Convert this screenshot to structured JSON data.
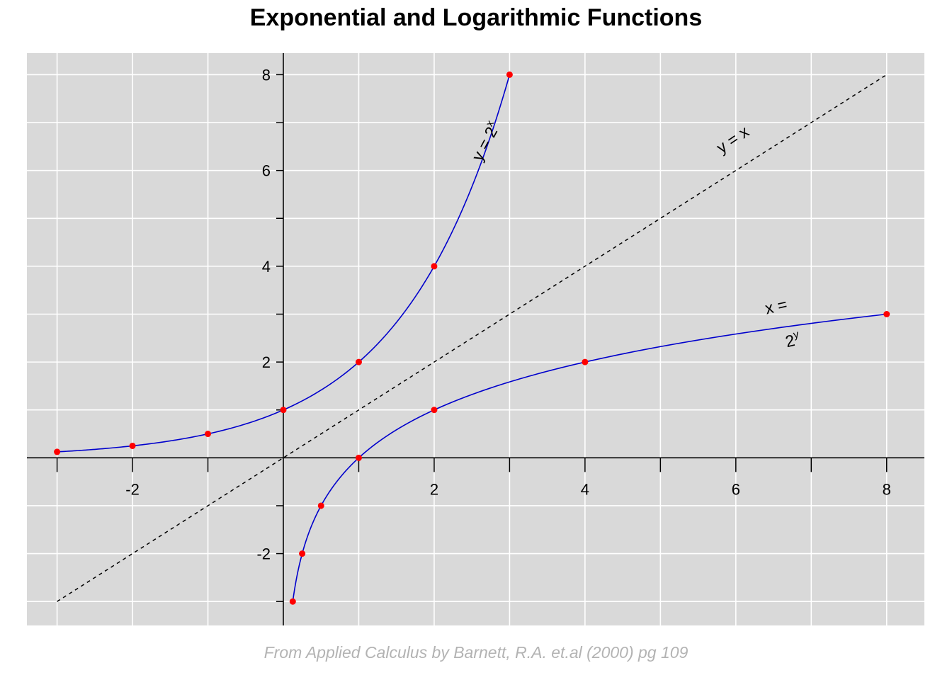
{
  "chart_data": {
    "type": "line",
    "title": "Exponential and Logarithmic Functions",
    "caption": "From Applied Calculus by Barnett, R.A. et.al (2000) pg 109",
    "xlabel": "",
    "ylabel": "",
    "xlim": [
      -3.4,
      8.5
    ],
    "ylim": [
      -3.5,
      8.45
    ],
    "x_ticks": [
      -3,
      -2,
      -1,
      0,
      1,
      2,
      3,
      4,
      5,
      6,
      7,
      8
    ],
    "x_tick_labels": [
      {
        "value": -2,
        "label": "-2"
      },
      {
        "value": 2,
        "label": "2"
      },
      {
        "value": 4,
        "label": "4"
      },
      {
        "value": 6,
        "label": "6"
      },
      {
        "value": 8,
        "label": "8"
      }
    ],
    "y_ticks": [
      -3,
      -2,
      -1,
      0,
      1,
      2,
      3,
      4,
      5,
      6,
      7,
      8
    ],
    "y_tick_labels": [
      {
        "value": -2,
        "label": "-2"
      },
      {
        "value": 2,
        "label": "2"
      },
      {
        "value": 4,
        "label": "4"
      },
      {
        "value": 6,
        "label": "6"
      },
      {
        "value": 8,
        "label": "8"
      }
    ],
    "grid": true,
    "series": [
      {
        "name": "y = 2^x",
        "function": "exp2",
        "x_range": [
          -3,
          3
        ],
        "points": [
          [
            -3,
            0.125
          ],
          [
            -2,
            0.25
          ],
          [
            -1,
            0.5
          ],
          [
            0,
            1
          ],
          [
            1,
            2
          ],
          [
            2,
            4
          ],
          [
            3,
            8
          ]
        ]
      },
      {
        "name": "x = 2^y",
        "function": "log2",
        "x_range": [
          0.125,
          8
        ],
        "points": [
          [
            0.125,
            -3
          ],
          [
            0.25,
            -2
          ],
          [
            0.5,
            -1
          ],
          [
            1,
            0
          ],
          [
            2,
            1
          ],
          [
            4,
            2
          ],
          [
            8,
            3
          ]
        ]
      },
      {
        "name": "y = x",
        "function": "identity",
        "x_range": [
          -3,
          8
        ],
        "style": "dashed"
      }
    ],
    "annotations": [
      {
        "series": "y = 2^x",
        "base": "y = 2",
        "sup": "x",
        "x": 2.75,
        "y": 6.55,
        "angle_deg": -62
      },
      {
        "series": "y = x",
        "text": "y = x",
        "x": 6.0,
        "y": 6.55,
        "angle_deg": -34
      },
      {
        "series": "x = 2^y",
        "line1": "x =",
        "line2_base": "2",
        "line2_sup": "y",
        "x": 6.55,
        "y": 3.05,
        "angle_deg": -13
      }
    ],
    "colors": {
      "panel": "#d9d9d9",
      "grid": "#ffffff",
      "axis": "#000000",
      "curve": "#0000cc",
      "points": "#ff0000",
      "diagonal": "#000000",
      "caption": "#b3b3b3"
    }
  }
}
